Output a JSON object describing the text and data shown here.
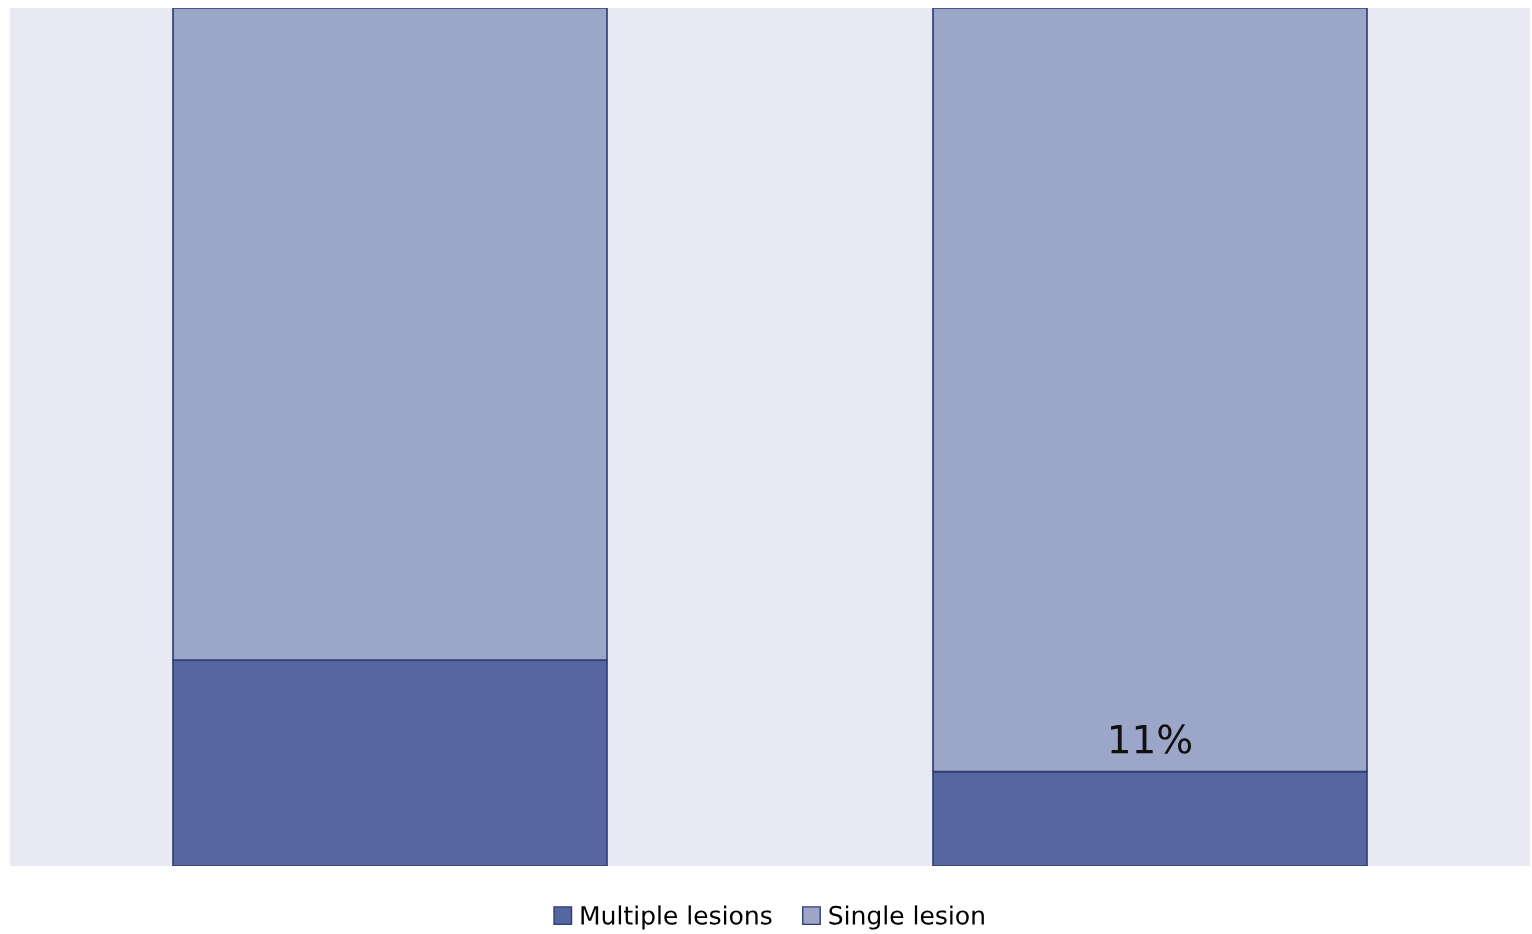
{
  "chart_data": {
    "type": "bar",
    "stacked": true,
    "categories": [
      null,
      null
    ],
    "series": [
      {
        "name": "Multiple lesions",
        "color": "#5566a0",
        "values": [
          24,
          11
        ],
        "value_labels": [
          null,
          "11%"
        ]
      },
      {
        "name": "Single lesion",
        "color": "#9ba6c9",
        "values": [
          76,
          89
        ]
      }
    ],
    "ylim": [
      0,
      100
    ],
    "legend": "bottom",
    "grid": false
  }
}
